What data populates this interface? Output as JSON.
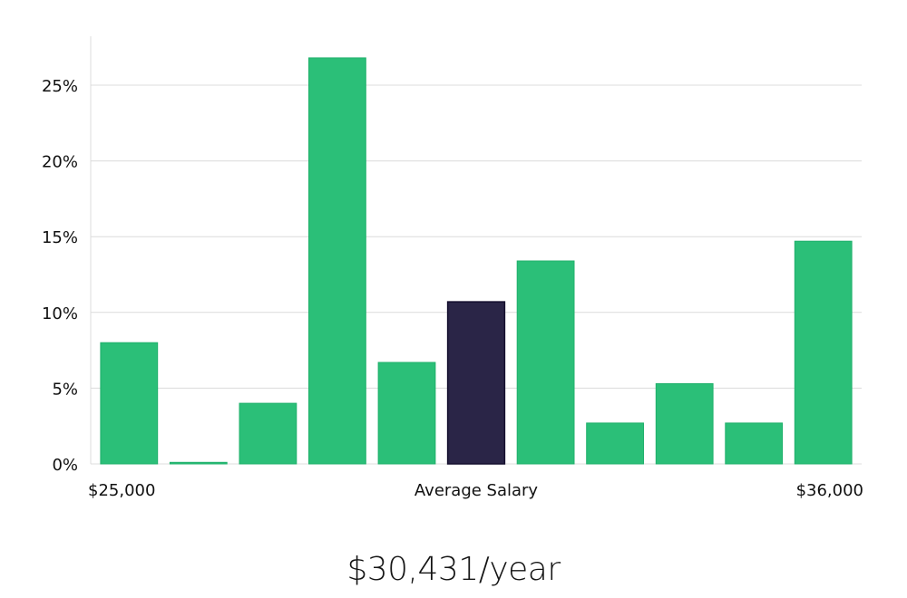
{
  "colors": {
    "bar": "#2bbf78",
    "bar_edge": "#20b06b",
    "highlight": "#2a2547",
    "highlight_edge": "#140f2e"
  },
  "summary": "$30,431/year",
  "chart_data": {
    "type": "bar",
    "values": [
      8.0,
      0.1,
      4.0,
      26.8,
      6.7,
      10.7,
      13.4,
      2.7,
      5.3,
      2.7,
      14.7
    ],
    "highlight_index": 5,
    "ylim": [
      0,
      28
    ],
    "yticks": [
      {
        "value": 0,
        "label": "0%"
      },
      {
        "value": 5,
        "label": "5%"
      },
      {
        "value": 10,
        "label": "10%"
      },
      {
        "value": 15,
        "label": "15%"
      },
      {
        "value": 20,
        "label": "20%"
      },
      {
        "value": 25,
        "label": "25%"
      }
    ],
    "x_left_label": "$25,000",
    "x_center_label": "Average Salary",
    "x_right_label": "$36,000",
    "grid": true
  }
}
